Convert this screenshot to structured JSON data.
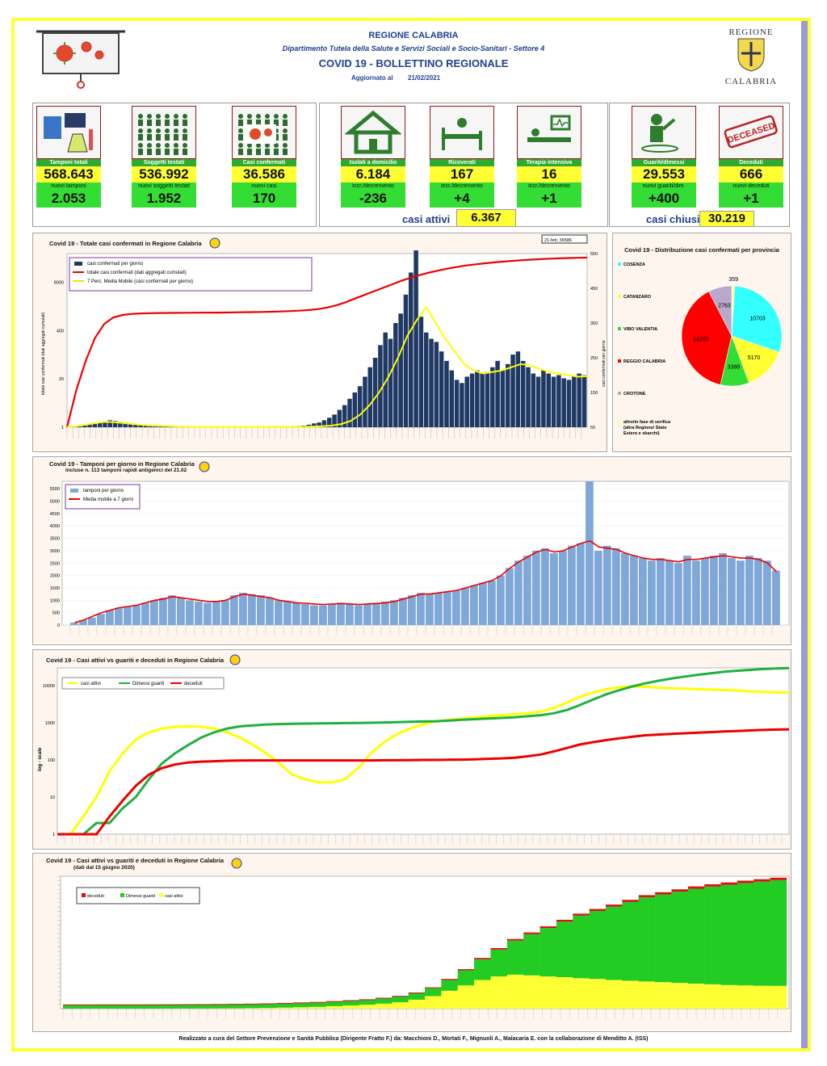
{
  "header": {
    "region": "REGIONE CALABRIA",
    "department": "Dipartimento Tutela della Salute e Servizi Sociali e Socio-Sanitari - Settore 4",
    "title": "COVID 19 - BOLLETTINO REGIONALE",
    "updated_label": "Aggiornato al",
    "updated_date": "21/02/2021",
    "logo_top": "REGIONE",
    "logo_bottom": "CALABRIA"
  },
  "cards": [
    {
      "label": "Tamponi totali",
      "value": "568.643",
      "sub_label": "nuovi tamponi",
      "sub_value": "2.053"
    },
    {
      "label": "Soggetti testati",
      "value": "536.992",
      "sub_label": "nuovi soggetti testati",
      "sub_value": "1.952"
    },
    {
      "label": "Casi confermati",
      "value": "36.586",
      "sub_label": "nuovi casi",
      "sub_value": "170"
    },
    {
      "label": "Isolati a domicilio",
      "value": "6.184",
      "sub_label": "incr./decremento",
      "sub_value": "-236"
    },
    {
      "label": "Ricoverati",
      "value": "167",
      "sub_label": "incr./decremento",
      "sub_value": "+4"
    },
    {
      "label": "Terapia intensiva",
      "value": "16",
      "sub_label": "incr./decremento",
      "sub_value": "+1"
    },
    {
      "label": "Guariti/dimessi",
      "value": "29.553",
      "sub_label": "nuovi guariti/dim.",
      "sub_value": "+400"
    },
    {
      "label": "Deceduti",
      "value": "666",
      "sub_label": "nuovi deceduti",
      "sub_value": "+1"
    }
  ],
  "deceased_stamp": "DECEASED",
  "summary": {
    "active_label": "casi attivi",
    "active_value": "6.367",
    "closed_label": "casi chiusi",
    "closed_value": "30.219"
  },
  "colors": {
    "green": "#2eaa2e",
    "yellow": "#ffff33",
    "red": "#ff0000",
    "navy": "#1f3864",
    "steel": "#7fa8d8"
  },
  "chart_data": [
    {
      "type": "bar",
      "title": "Covid 19 - Totale casi confermati in Regione Calabria",
      "callout": "21-feb; 36586",
      "ylabel_left": "totale casi confermati (dati aggregati cumulati)",
      "ylabel_right": "casi confermati per giorno",
      "legend": [
        "casi confermati per giorno",
        "totale casi confermati (dati aggregati cumulati)",
        "7 Perc. Media Mobile (casi confermati per giorno)"
      ],
      "y_ticks_left": [
        "1",
        "20",
        "400",
        "8000"
      ],
      "y_ticks_right": [
        "50",
        "150",
        "250",
        "350",
        "450",
        "550"
      ],
      "series": [
        {
          "name": "casi confermati per giorno",
          "values": [
            1,
            2,
            3,
            5,
            8,
            10,
            14,
            18,
            22,
            20,
            17,
            15,
            12,
            10,
            8,
            7,
            6,
            5,
            5,
            4,
            3,
            3,
            2,
            2,
            2,
            1,
            1,
            1,
            1,
            1,
            1,
            1,
            1,
            1,
            1,
            1,
            1,
            1,
            2,
            2,
            3,
            3,
            2,
            2,
            3,
            4,
            5,
            8,
            12,
            15,
            22,
            30,
            40,
            55,
            70,
            90,
            110,
            130,
            160,
            190,
            220,
            260,
            300,
            280,
            330,
            360,
            420,
            490,
            560,
            350,
            300,
            280,
            270,
            240,
            210,
            180,
            150,
            140,
            160,
            170,
            180,
            170,
            175,
            190,
            210,
            180,
            200,
            230,
            240,
            210,
            190,
            170,
            160,
            180,
            170,
            160,
            165,
            155,
            150,
            160,
            170,
            165
          ]
        },
        {
          "name": "totale casi confermati (dati aggregati cumulati)",
          "values": [
            1,
            10,
            60,
            250,
            600,
            900,
            1050,
            1120,
            1150,
            1170,
            1180,
            1190,
            1195,
            1200,
            1205,
            1210,
            1215,
            1220,
            1230,
            1240,
            1250,
            1260,
            1280,
            1300,
            1330,
            1370,
            1420,
            1500,
            1650,
            1900,
            2300,
            2900,
            3600,
            4500,
            5600,
            7000,
            8700,
            10500,
            12500,
            14500,
            16500,
            18500,
            20500,
            22500,
            24200,
            25800,
            27300,
            28700,
            30000,
            31200,
            32300,
            33300,
            34200,
            35000,
            35700,
            36200,
            36586
          ]
        },
        {
          "name": "7 Perc. Media Mobile (casi confermati per giorno)",
          "values": [
            1,
            3,
            8,
            13,
            17,
            16,
            13,
            10,
            7,
            5,
            4,
            3,
            2,
            2,
            1,
            1,
            1,
            1,
            1,
            1,
            1,
            1,
            1,
            1,
            1,
            1,
            2,
            3,
            5,
            10,
            20,
            40,
            70,
            110,
            160,
            220,
            290,
            340,
            380,
            330,
            280,
            240,
            200,
            180,
            170,
            175,
            180,
            190,
            200,
            195,
            185,
            175,
            170,
            165,
            160,
            162
          ]
        }
      ]
    },
    {
      "type": "pie",
      "title": "Covid 19 - Distribuzione casi confermati per provincia",
      "categories": [
        "COSENZA",
        "CATANZARO",
        "VIBO VALENTIA",
        "REGGIO CALABRIA",
        "CROTONE",
        "altro/in fase di verifica (altra Regione/ Stato Estero e sbarchi)"
      ],
      "values": [
        10703,
        5170,
        3388,
        14203,
        2763,
        359
      ],
      "colors": [
        "#33ffff",
        "#ffff33",
        "#33dd33",
        "#ff0000",
        "#b8a9cc",
        "#ffff99"
      ]
    },
    {
      "type": "bar",
      "title": "Covid 19 - Tamponi per giorno in Regione Calabria",
      "subtitle": "incluse n. 113 tamponi rapidi antigenici del 21.02",
      "legend": [
        "tamponi per giorno",
        "Media mobile a 7 giorni"
      ],
      "y_ticks": [
        "0",
        "500",
        "1000",
        "1500",
        "2000",
        "2500",
        "3000",
        "3500",
        "4000",
        "4500",
        "5000",
        "5500"
      ],
      "series": [
        {
          "name": "tamponi per giorno",
          "values": [
            100,
            200,
            300,
            450,
            600,
            700,
            750,
            800,
            900,
            1000,
            1100,
            1200,
            1100,
            1000,
            950,
            900,
            950,
            1000,
            1200,
            1300,
            1250,
            1200,
            1100,
            1000,
            950,
            900,
            850,
            800,
            800,
            850,
            900,
            850,
            800,
            850,
            900,
            950,
            1000,
            1100,
            1200,
            1300,
            1250,
            1300,
            1350,
            1400,
            1500,
            1600,
            1700,
            1800,
            2000,
            2300,
            2600,
            2800,
            3000,
            3100,
            2900,
            3000,
            3200,
            3300,
            5800,
            3000,
            3200,
            3100,
            2900,
            2800,
            2700,
            2600,
            2700,
            2600,
            2500,
            2800,
            2600,
            2700,
            2800,
            2900,
            2700,
            2600,
            2800,
            2700,
            2600,
            2200
          ]
        },
        {
          "name": "Media mobile a 7 giorni",
          "values": [
            100,
            200,
            350,
            500,
            600,
            700,
            750,
            800,
            900,
            1000,
            1050,
            1150,
            1100,
            1050,
            1000,
            950,
            950,
            1000,
            1150,
            1250,
            1200,
            1150,
            1100,
            1000,
            950,
            900,
            880,
            850,
            830,
            850,
            870,
            850,
            830,
            850,
            870,
            900,
            950,
            1050,
            1150,
            1250,
            1250,
            1300,
            1350,
            1400,
            1500,
            1600,
            1700,
            1800,
            2000,
            2300,
            2550,
            2750,
            2950,
            3050,
            2950,
            3000,
            3150,
            3300,
            3400,
            3150,
            3100,
            3050,
            2900,
            2800,
            2700,
            2650,
            2650,
            2600,
            2550,
            2650,
            2650,
            2700,
            2750,
            2800,
            2750,
            2700,
            2700,
            2650,
            2500,
            2150
          ]
        }
      ]
    },
    {
      "type": "line",
      "title": "Covid 19 - Casi attivi vs guariti e deceduti in Regione Calabria",
      "ylabel": "log - scale",
      "y_ticks": [
        "1",
        "10",
        "100",
        "1000",
        "10000"
      ],
      "legend": [
        "casi attivi",
        "Dimessi guariti",
        "deceduti"
      ],
      "series": [
        {
          "name": "casi attivi",
          "values": [
            1,
            1,
            3,
            10,
            50,
            150,
            350,
            550,
            700,
            780,
            800,
            780,
            700,
            550,
            400,
            250,
            150,
            80,
            40,
            30,
            25,
            25,
            30,
            60,
            150,
            300,
            500,
            700,
            900,
            1100,
            1200,
            1300,
            1400,
            1500,
            1600,
            1700,
            1800,
            2000,
            2500,
            3500,
            5000,
            6500,
            8000,
            9000,
            9500,
            9300,
            8800,
            8500,
            8300,
            8000,
            7800,
            7600,
            7400,
            7000,
            6800,
            6600,
            6367
          ]
        },
        {
          "name": "Dimessi guariti",
          "values": [
            1,
            1,
            1,
            2,
            2,
            5,
            10,
            30,
            80,
            150,
            250,
            400,
            550,
            700,
            800,
            850,
            900,
            920,
            940,
            950,
            960,
            970,
            980,
            990,
            1000,
            1020,
            1040,
            1060,
            1080,
            1100,
            1150,
            1200,
            1250,
            1300,
            1350,
            1400,
            1500,
            1600,
            1800,
            2200,
            3000,
            4200,
            5800,
            7500,
            9500,
            11500,
            13500,
            15500,
            17500,
            19500,
            21500,
            23500,
            25000,
            26500,
            27800,
            28800,
            29553
          ]
        },
        {
          "name": "deceduti",
          "values": [
            1,
            1,
            1,
            1,
            3,
            8,
            20,
            40,
            60,
            75,
            85,
            90,
            92,
            95,
            96,
            97,
            97,
            97,
            97,
            97,
            97,
            97,
            97,
            97,
            97,
            98,
            98,
            99,
            100,
            100,
            101,
            102,
            104,
            107,
            110,
            115,
            125,
            140,
            170,
            210,
            260,
            300,
            340,
            380,
            420,
            460,
            480,
            500,
            520,
            540,
            560,
            580,
            600,
            620,
            640,
            655,
            666
          ]
        }
      ]
    },
    {
      "type": "bar",
      "title": "Covid 19 - Casi attivi vs guariti e deceduti in Regione Calabria",
      "subtitle": "(dati dal 15 giugno 2020)",
      "legend": [
        "deceduti",
        "Dimessi guariti",
        "casi attivi"
      ],
      "series": [
        {
          "name": "casi attivi",
          "values": [
            30,
            30,
            30,
            30,
            30,
            35,
            40,
            50,
            60,
            80,
            100,
            150,
            200,
            300,
            400,
            500,
            700,
            900,
            1100,
            1400,
            1800,
            2500,
            3500,
            5000,
            6500,
            8000,
            9000,
            9500,
            9300,
            9000,
            8800,
            8500,
            8300,
            8000,
            7800,
            7600,
            7400,
            7200,
            7000,
            6800,
            6600,
            6500,
            6400,
            6367
          ]
        },
        {
          "name": "Dimessi guariti",
          "values": [
            1050,
            1050,
            1060,
            1060,
            1070,
            1070,
            1080,
            1090,
            1100,
            1110,
            1130,
            1150,
            1170,
            1200,
            1230,
            1260,
            1300,
            1350,
            1400,
            1500,
            1600,
            1800,
            2200,
            3000,
            4200,
            5800,
            7500,
            9500,
            11500,
            13500,
            15500,
            17500,
            19000,
            20500,
            22000,
            23500,
            24500,
            25500,
            26500,
            27300,
            28000,
            28600,
            29100,
            29553
          ]
        },
        {
          "name": "deceduti",
          "values": [
            97,
            97,
            97,
            97,
            97,
            97,
            97,
            98,
            98,
            99,
            100,
            100,
            101,
            102,
            104,
            107,
            110,
            115,
            125,
            140,
            170,
            210,
            260,
            300,
            340,
            380,
            420,
            460,
            480,
            500,
            520,
            540,
            560,
            580,
            600,
            615,
            625,
            635,
            645,
            652,
            658,
            662,
            664,
            666
          ]
        }
      ]
    }
  ],
  "footer": "Realizzato a cura del Settore Prevenzione e Sanità Pubblica (Dirigente Fratto F.) da: Macchioni D., Mortati F., Mignuoli A., Malacaria E. con la collaborazione di Menditto A. (ISS)"
}
